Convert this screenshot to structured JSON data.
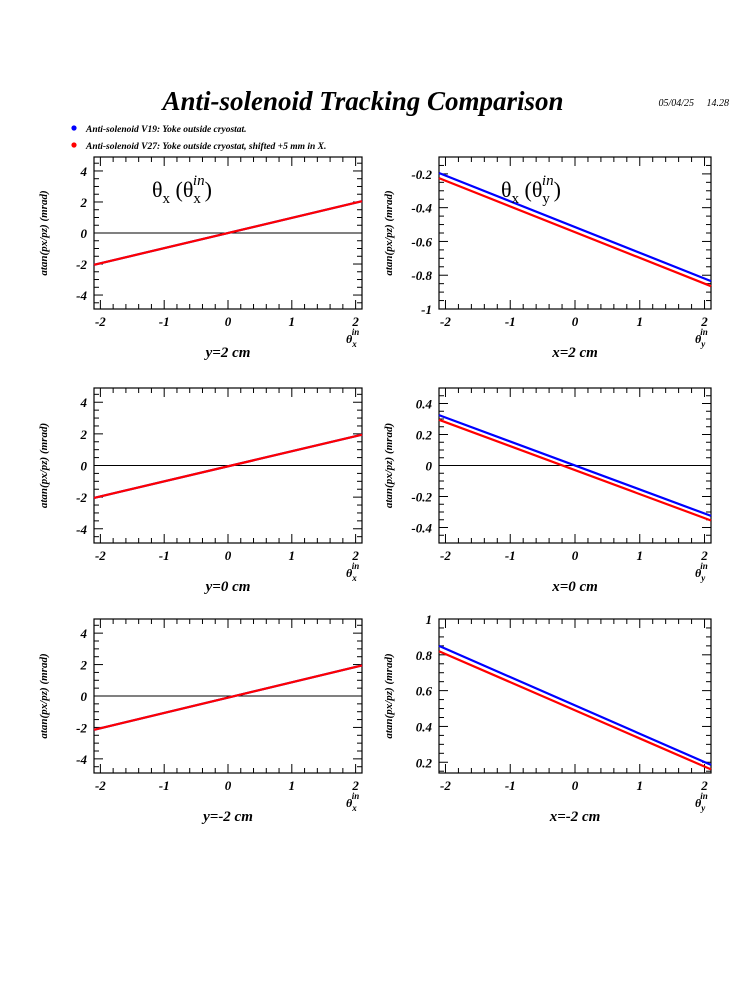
{
  "header": {
    "title": "Anti-solenoid Tracking Comparison",
    "date": "05/04/25",
    "time": "14.28"
  },
  "legend": [
    {
      "label": "Anti-solenoid V19: Yoke outside cryostat.",
      "color": "#0000ff"
    },
    {
      "label": "Anti-solenoid V27: Yoke outside cryostat, shifted +5 mm in X.",
      "color": "#ff0000"
    }
  ],
  "colors": {
    "series_a": "#0000ff",
    "series_b": "#ff0000",
    "axis": "#000000",
    "zero_line": "#000000"
  },
  "chart_data": [
    {
      "type": "line",
      "caption": "y=2 cm",
      "ylabel": "atan(px/pz) (mrad)",
      "xlabel_sym": "θ",
      "xlabel_sub": "x",
      "xlabel_sup": "in",
      "inset": {
        "lead": "θ",
        "sub1": "x",
        "mid": " (θ",
        "sub2": "x",
        "sup": "in",
        "tail": ")"
      },
      "xlim": [
        -2.1,
        2.1
      ],
      "ylim": [
        -4.9,
        4.9
      ],
      "xticks": [
        -2,
        -1,
        0,
        1,
        2
      ],
      "xtick_labels": [
        "-2",
        "-1",
        "0",
        "1",
        "2"
      ],
      "yticks": [
        -4,
        -2,
        0,
        2,
        4
      ],
      "ytick_labels": [
        "-4",
        "-2",
        "0",
        "2",
        "4"
      ],
      "zero_line": true,
      "series": [
        {
          "x": [
            -2.1,
            2.1
          ],
          "y": [
            -2.05,
            2.05
          ]
        },
        {
          "x": [
            -2.1,
            2.1
          ],
          "y": [
            -2.05,
            2.05
          ]
        }
      ]
    },
    {
      "type": "line",
      "caption": "x=2 cm",
      "ylabel": "atan(px/pz) (mrad)",
      "xlabel_sym": "θ",
      "xlabel_sub": "y",
      "xlabel_sup": "in",
      "inset": {
        "lead": "θ",
        "sub1": "x",
        "mid": " (θ",
        "sub2": "y",
        "sup": "in",
        "tail": ")"
      },
      "xlim": [
        -2.1,
        2.1
      ],
      "ylim": [
        -1.0,
        -0.1
      ],
      "xticks": [
        -2,
        -1,
        0,
        1,
        2
      ],
      "xtick_labels": [
        "-2",
        "-1",
        "0",
        "1",
        "2"
      ],
      "yticks": [
        -1.0,
        -0.8,
        -0.6,
        -0.4,
        -0.2
      ],
      "ytick_labels": [
        "-1",
        "-0.8",
        "-0.6",
        "-0.4",
        "-0.2"
      ],
      "zero_line": false,
      "series": [
        {
          "x": [
            -2.1,
            2.1
          ],
          "y": [
            -0.195,
            -0.835
          ]
        },
        {
          "x": [
            -2.1,
            2.1
          ],
          "y": [
            -0.225,
            -0.865
          ]
        }
      ]
    },
    {
      "type": "line",
      "caption": "y=0 cm",
      "ylabel": "atan(px/pz) (mrad)",
      "xlabel_sym": "θ",
      "xlabel_sub": "x",
      "xlabel_sup": "in",
      "inset": null,
      "xlim": [
        -2.1,
        2.1
      ],
      "ylim": [
        -4.9,
        4.9
      ],
      "xticks": [
        -2,
        -1,
        0,
        1,
        2
      ],
      "xtick_labels": [
        "-2",
        "-1",
        "0",
        "1",
        "2"
      ],
      "yticks": [
        -4,
        -2,
        0,
        2,
        4
      ],
      "ytick_labels": [
        "-4",
        "-2",
        "0",
        "2",
        "4"
      ],
      "zero_line": true,
      "series": [
        {
          "x": [
            -2.1,
            2.1
          ],
          "y": [
            -2.05,
            1.95
          ]
        },
        {
          "x": [
            -2.1,
            2.1
          ],
          "y": [
            -2.05,
            1.95
          ]
        }
      ]
    },
    {
      "type": "line",
      "caption": "x=0 cm",
      "ylabel": "atan(px/pz) (mrad)",
      "xlabel_sym": "θ",
      "xlabel_sub": "y",
      "xlabel_sup": "in",
      "inset": null,
      "xlim": [
        -2.1,
        2.1
      ],
      "ylim": [
        -0.5,
        0.5
      ],
      "xticks": [
        -2,
        -1,
        0,
        1,
        2
      ],
      "xtick_labels": [
        "-2",
        "-1",
        "0",
        "1",
        "2"
      ],
      "yticks": [
        -0.4,
        -0.2,
        0,
        0.2,
        0.4
      ],
      "ytick_labels": [
        "-0.4",
        "-0.2",
        "0",
        "0.2",
        "0.4"
      ],
      "zero_line": true,
      "series": [
        {
          "x": [
            -2.1,
            2.1
          ],
          "y": [
            0.325,
            -0.325
          ]
        },
        {
          "x": [
            -2.1,
            2.1
          ],
          "y": [
            0.295,
            -0.355
          ]
        }
      ]
    },
    {
      "type": "line",
      "caption": "y=-2 cm",
      "ylabel": "atan(px/pz) (mrad)",
      "xlabel_sym": "θ",
      "xlabel_sub": "x",
      "xlabel_sup": "in",
      "inset": null,
      "xlim": [
        -2.1,
        2.1
      ],
      "ylim": [
        -4.9,
        4.9
      ],
      "xticks": [
        -2,
        -1,
        0,
        1,
        2
      ],
      "xtick_labels": [
        "-2",
        "-1",
        "0",
        "1",
        "2"
      ],
      "yticks": [
        -4,
        -2,
        0,
        2,
        4
      ],
      "ytick_labels": [
        "-4",
        "-2",
        "0",
        "2",
        "4"
      ],
      "zero_line": true,
      "series": [
        {
          "x": [
            -2.1,
            2.1
          ],
          "y": [
            -2.15,
            1.95
          ]
        },
        {
          "x": [
            -2.1,
            2.1
          ],
          "y": [
            -2.15,
            1.95
          ]
        }
      ]
    },
    {
      "type": "line",
      "caption": "x=-2 cm",
      "ylabel": "atan(px/pz) (mrad)",
      "xlabel_sym": "θ",
      "xlabel_sub": "y",
      "xlabel_sup": "in",
      "inset": null,
      "xlim": [
        -2.1,
        2.1
      ],
      "ylim": [
        0.14,
        1.0
      ],
      "xticks": [
        -2,
        -1,
        0,
        1,
        2
      ],
      "xtick_labels": [
        "-2",
        "-1",
        "0",
        "1",
        "2"
      ],
      "yticks": [
        0.2,
        0.4,
        0.6,
        0.8,
        1.0
      ],
      "ytick_labels": [
        "0.2",
        "0.4",
        "0.6",
        "0.8",
        "1"
      ],
      "zero_line": false,
      "series": [
        {
          "x": [
            -2.1,
            2.1
          ],
          "y": [
            0.85,
            0.185
          ]
        },
        {
          "x": [
            -2.1,
            2.1
          ],
          "y": [
            0.82,
            0.16
          ]
        }
      ]
    }
  ]
}
